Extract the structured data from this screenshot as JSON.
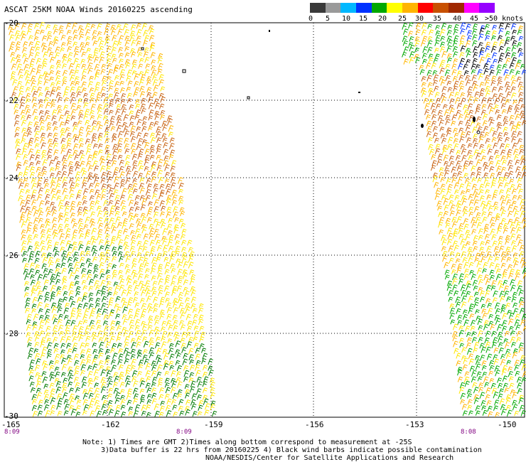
{
  "title": "ASCAT 25KM NOAA Winds 20160225 ascending",
  "legend": {
    "labels": [
      "0",
      "5",
      "10",
      "15",
      "20",
      "25",
      "30",
      "35",
      "40",
      "45",
      ">50 knots"
    ],
    "colors": [
      "#3a3a3a",
      "#9a9a9a",
      "#00b8ff",
      "#0032ff",
      "#00a800",
      "#ffff00",
      "#ffb400",
      "#ff0000",
      "#c85000",
      "#a02800",
      "#ff00ff",
      "#9600ff"
    ]
  },
  "axes": {
    "lat_labels": [
      "-20",
      "-22",
      "-24",
      "-26",
      "-28",
      "-30"
    ],
    "lon_labels": [
      "-165",
      "-162",
      "-159",
      "-156",
      "-153",
      "-150"
    ]
  },
  "times": [
    "8:09",
    "8:09",
    "8:08"
  ],
  "notes": [
    "Note: 1) Times are GMT 2)Times along bottom correspond to measurement at -25S",
    "3)Data buffer is 22 hrs from 20160225 4) Black wind barbs indicate possible contamination",
    "NOAA/NESDIS/Center for Satellite Applications and Research"
  ]
}
